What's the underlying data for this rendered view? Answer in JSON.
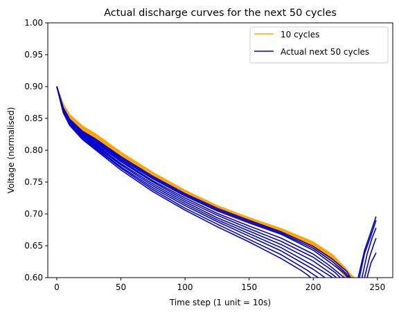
{
  "chart_data": {
    "type": "line",
    "title": "Actual discharge curves for the next 50 cycles",
    "xlabel": "Time step (1 unit = 10s)",
    "ylabel": "Voltage (normalised)",
    "xlim": [
      -7,
      262
    ],
    "ylim": [
      0.6,
      1.0
    ],
    "xticks": [
      0,
      50,
      100,
      150,
      200,
      250
    ],
    "yticks": [
      0.6,
      0.65,
      0.7,
      0.75,
      0.8,
      0.85,
      0.9,
      0.95,
      1.0
    ],
    "x_tick_labels": [
      "0",
      "50",
      "100",
      "150",
      "200",
      "250"
    ],
    "y_tick_labels": [
      "0.60",
      "0.65",
      "0.70",
      "0.75",
      "0.80",
      "0.85",
      "0.90",
      "0.95",
      "1.00"
    ],
    "legend_position": "top-right",
    "colors": {
      "history": "#ffa500",
      "actual": "#0000cd"
    },
    "series": [
      {
        "name": "10 cycles",
        "group": "history",
        "x": [
          0,
          5,
          10,
          20,
          30,
          50,
          75,
          100,
          125,
          150,
          175,
          200,
          215,
          225,
          230,
          232
        ],
        "y": [
          0.9,
          0.873,
          0.856,
          0.838,
          0.826,
          0.797,
          0.765,
          0.737,
          0.713,
          0.694,
          0.677,
          0.656,
          0.636,
          0.615,
          0.603,
          0.6
        ]
      },
      {
        "name": "",
        "group": "history",
        "x": [
          0,
          5,
          10,
          20,
          30,
          50,
          75,
          100,
          125,
          150,
          175,
          200,
          215,
          225,
          230,
          232
        ],
        "y": [
          0.9,
          0.872,
          0.855,
          0.837,
          0.825,
          0.796,
          0.764,
          0.736,
          0.712,
          0.693,
          0.676,
          0.655,
          0.635,
          0.614,
          0.603,
          0.6
        ]
      },
      {
        "name": "",
        "group": "history",
        "x": [
          0,
          5,
          10,
          20,
          30,
          50,
          75,
          100,
          125,
          150,
          175,
          200,
          215,
          225,
          230,
          231
        ],
        "y": [
          0.9,
          0.871,
          0.854,
          0.836,
          0.824,
          0.795,
          0.763,
          0.735,
          0.711,
          0.692,
          0.675,
          0.654,
          0.634,
          0.613,
          0.602,
          0.6
        ]
      },
      {
        "name": "",
        "group": "history",
        "x": [
          0,
          5,
          10,
          20,
          30,
          50,
          75,
          100,
          125,
          150,
          175,
          200,
          215,
          225,
          229,
          230
        ],
        "y": [
          0.9,
          0.87,
          0.853,
          0.835,
          0.823,
          0.794,
          0.762,
          0.734,
          0.71,
          0.691,
          0.674,
          0.653,
          0.633,
          0.612,
          0.602,
          0.6
        ]
      },
      {
        "name": "",
        "group": "history",
        "x": [
          0,
          5,
          10,
          20,
          30,
          50,
          75,
          100,
          125,
          150,
          175,
          200,
          215,
          225,
          229
        ],
        "y": [
          0.9,
          0.869,
          0.852,
          0.834,
          0.822,
          0.793,
          0.761,
          0.733,
          0.709,
          0.69,
          0.673,
          0.652,
          0.632,
          0.608,
          0.6
        ]
      },
      {
        "name": "",
        "group": "history",
        "x": [
          0,
          5,
          10,
          20,
          30,
          50,
          75,
          100,
          125,
          150,
          175,
          200,
          215,
          225,
          228
        ],
        "y": [
          0.9,
          0.868,
          0.851,
          0.833,
          0.821,
          0.792,
          0.76,
          0.732,
          0.708,
          0.689,
          0.672,
          0.651,
          0.631,
          0.607,
          0.6
        ]
      },
      {
        "name": "",
        "group": "history",
        "x": [
          0,
          5,
          10,
          20,
          30,
          50,
          75,
          100,
          125,
          150,
          175,
          200,
          215,
          224,
          227
        ],
        "y": [
          0.9,
          0.868,
          0.851,
          0.833,
          0.82,
          0.791,
          0.759,
          0.731,
          0.707,
          0.688,
          0.671,
          0.65,
          0.63,
          0.608,
          0.6
        ]
      },
      {
        "name": "",
        "group": "history",
        "x": [
          0,
          5,
          10,
          20,
          30,
          50,
          75,
          100,
          125,
          150,
          175,
          200,
          215,
          224,
          227
        ],
        "y": [
          0.9,
          0.867,
          0.85,
          0.832,
          0.819,
          0.79,
          0.758,
          0.73,
          0.706,
          0.687,
          0.67,
          0.649,
          0.629,
          0.607,
          0.6
        ]
      },
      {
        "name": "",
        "group": "history",
        "x": [
          0,
          5,
          10,
          20,
          30,
          50,
          75,
          100,
          125,
          150,
          175,
          200,
          215,
          223,
          226
        ],
        "y": [
          0.9,
          0.867,
          0.85,
          0.831,
          0.818,
          0.789,
          0.757,
          0.729,
          0.705,
          0.686,
          0.669,
          0.648,
          0.627,
          0.607,
          0.6
        ]
      },
      {
        "name": "",
        "group": "history",
        "x": [
          0,
          5,
          10,
          20,
          30,
          50,
          75,
          100,
          125,
          150,
          175,
          200,
          215,
          223,
          225
        ],
        "y": [
          0.9,
          0.866,
          0.849,
          0.83,
          0.817,
          0.788,
          0.756,
          0.728,
          0.704,
          0.685,
          0.668,
          0.647,
          0.626,
          0.606,
          0.6
        ]
      },
      {
        "name": "Actual next 50 cycles",
        "group": "actual",
        "x": [
          0,
          5,
          10,
          20,
          30,
          50,
          75,
          100,
          125,
          150,
          175,
          200,
          215,
          226,
          229
        ],
        "y": [
          0.9,
          0.867,
          0.849,
          0.83,
          0.818,
          0.79,
          0.759,
          0.732,
          0.709,
          0.69,
          0.672,
          0.649,
          0.629,
          0.61,
          0.6
        ]
      },
      {
        "name": "",
        "group": "actual",
        "x": [
          0,
          5,
          10,
          20,
          30,
          50,
          75,
          100,
          125,
          150,
          175,
          200,
          215,
          225,
          228
        ],
        "y": [
          0.9,
          0.866,
          0.848,
          0.829,
          0.816,
          0.788,
          0.757,
          0.73,
          0.707,
          0.688,
          0.67,
          0.646,
          0.625,
          0.608,
          0.6
        ]
      },
      {
        "name": "",
        "group": "actual",
        "x": [
          0,
          5,
          10,
          20,
          30,
          50,
          75,
          100,
          125,
          150,
          175,
          200,
          215,
          224,
          227
        ],
        "y": [
          0.9,
          0.865,
          0.847,
          0.828,
          0.815,
          0.786,
          0.755,
          0.728,
          0.705,
          0.686,
          0.668,
          0.643,
          0.621,
          0.607,
          0.6
        ]
      },
      {
        "name": "",
        "group": "actual",
        "x": [
          0,
          5,
          10,
          20,
          30,
          50,
          75,
          100,
          125,
          150,
          175,
          200,
          212,
          220,
          224
        ],
        "y": [
          0.9,
          0.864,
          0.846,
          0.826,
          0.813,
          0.784,
          0.752,
          0.725,
          0.701,
          0.681,
          0.662,
          0.637,
          0.62,
          0.607,
          0.6
        ]
      },
      {
        "name": "",
        "group": "actual",
        "x": [
          0,
          5,
          10,
          20,
          30,
          50,
          75,
          100,
          125,
          150,
          175,
          200,
          210,
          217,
          221
        ],
        "y": [
          0.9,
          0.863,
          0.845,
          0.825,
          0.811,
          0.782,
          0.75,
          0.722,
          0.698,
          0.677,
          0.657,
          0.632,
          0.618,
          0.608,
          0.6
        ]
      },
      {
        "name": "",
        "group": "actual",
        "x": [
          0,
          5,
          10,
          20,
          30,
          50,
          75,
          100,
          125,
          150,
          175,
          200,
          210,
          215,
          218
        ],
        "y": [
          0.9,
          0.862,
          0.844,
          0.823,
          0.809,
          0.779,
          0.747,
          0.719,
          0.694,
          0.673,
          0.652,
          0.626,
          0.612,
          0.605,
          0.6
        ]
      },
      {
        "name": "",
        "group": "actual",
        "x": [
          0,
          5,
          10,
          20,
          30,
          50,
          75,
          100,
          125,
          150,
          175,
          200,
          208,
          212,
          215
        ],
        "y": [
          0.9,
          0.861,
          0.842,
          0.822,
          0.807,
          0.777,
          0.744,
          0.716,
          0.691,
          0.669,
          0.647,
          0.619,
          0.609,
          0.604,
          0.6
        ]
      },
      {
        "name": "",
        "group": "actual",
        "x": [
          0,
          5,
          10,
          20,
          30,
          50,
          75,
          100,
          125,
          150,
          175,
          200,
          205,
          209
        ],
        "y": [
          0.9,
          0.86,
          0.841,
          0.82,
          0.805,
          0.774,
          0.741,
          0.713,
          0.688,
          0.665,
          0.642,
          0.613,
          0.606,
          0.6
        ]
      },
      {
        "name": "",
        "group": "actual",
        "x": [
          0,
          5,
          10,
          20,
          30,
          50,
          75,
          100,
          125,
          150,
          175,
          195,
          200,
          204
        ],
        "y": [
          0.9,
          0.86,
          0.84,
          0.818,
          0.803,
          0.772,
          0.738,
          0.709,
          0.684,
          0.66,
          0.636,
          0.612,
          0.605,
          0.6
        ]
      },
      {
        "name": "",
        "group": "actual",
        "x": [
          0,
          5,
          10,
          20,
          30,
          50,
          75,
          100,
          125,
          150,
          175,
          190,
          195,
          198
        ],
        "y": [
          0.9,
          0.859,
          0.839,
          0.817,
          0.801,
          0.769,
          0.735,
          0.706,
          0.68,
          0.656,
          0.63,
          0.612,
          0.605,
          0.6
        ]
      },
      {
        "name": "",
        "group": "actual",
        "x": [
          235,
          240,
          245,
          249
        ],
        "y": [
          0.6,
          0.643,
          0.672,
          0.696
        ]
      },
      {
        "name": "",
        "group": "actual",
        "x": [
          236,
          240,
          245,
          249
        ],
        "y": [
          0.6,
          0.638,
          0.666,
          0.69
        ]
      },
      {
        "name": "",
        "group": "actual",
        "x": [
          238,
          242,
          246,
          249
        ],
        "y": [
          0.6,
          0.637,
          0.663,
          0.678
        ]
      },
      {
        "name": "",
        "group": "actual",
        "x": [
          240,
          244,
          247,
          249
        ],
        "y": [
          0.6,
          0.633,
          0.651,
          0.662
        ]
      },
      {
        "name": "",
        "group": "actual",
        "x": [
          242,
          245,
          248,
          249
        ],
        "y": [
          0.6,
          0.623,
          0.635,
          0.639
        ]
      }
    ]
  }
}
